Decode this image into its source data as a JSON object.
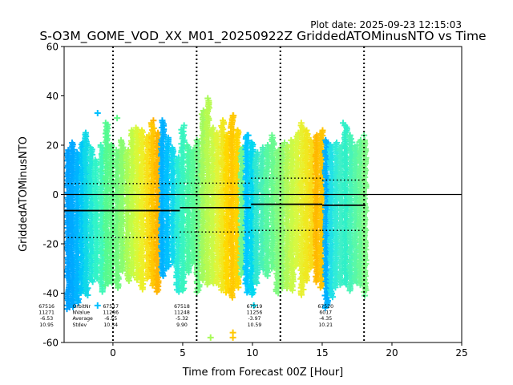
{
  "chart_data": {
    "type": "scatter",
    "plot_date": "Plot date: 2025-09-23 12:15:03",
    "title": "S-O3M_GOME_VOD_XX_M01_20250922Z GriddedATOMinusNTO vs Time",
    "xlabel": "Time from Forecast 00Z [Hour]",
    "ylabel": "GriddedATOMinusNTO",
    "xlim": [
      -3.5,
      25
    ],
    "ylim": [
      -60,
      60
    ],
    "xticks": [
      0,
      5,
      10,
      15,
      20,
      25
    ],
    "yticks": [
      -60,
      -40,
      -20,
      0,
      20,
      40,
      60
    ],
    "forecast_lines_x": [
      0,
      6,
      12,
      18
    ],
    "zero_line_y": 0,
    "columns": [
      {
        "x": -3.2,
        "lo": -47,
        "hi": 18,
        "color": "#00a0ff"
      },
      {
        "x": -2.9,
        "lo": -46,
        "hi": 21,
        "color": "#00a8ff"
      },
      {
        "x": -2.55,
        "lo": -44,
        "hi": 17,
        "color": "#00b4ff"
      },
      {
        "x": -2.2,
        "lo": -40,
        "hi": 21,
        "color": "#00c8f8"
      },
      {
        "x": -1.9,
        "lo": -41,
        "hi": 25,
        "color": "#10d8e8"
      },
      {
        "x": -1.55,
        "lo": -36,
        "hi": 19,
        "color": "#20e8d8"
      },
      {
        "x": -1.2,
        "lo": -34,
        "hi": 14,
        "color": "#30f4c8"
      },
      {
        "x": -0.8,
        "lo": -40,
        "hi": 20,
        "color": "#40f8b8"
      },
      {
        "x": -0.45,
        "lo": -37,
        "hi": 29,
        "color": "#55fa90"
      },
      {
        "x": -0.1,
        "lo": -36,
        "hi": 20,
        "color": "#60fa88"
      },
      {
        "x": 0.3,
        "lo": -38,
        "hi": 18,
        "color": "#70fa80"
      },
      {
        "x": 0.65,
        "lo": -31,
        "hi": 22,
        "color": "#88fc70"
      },
      {
        "x": 1.05,
        "lo": -35,
        "hi": 18,
        "color": "#a8fc58"
      },
      {
        "x": 1.4,
        "lo": -33,
        "hi": 26,
        "color": "#c0fc48"
      },
      {
        "x": 1.75,
        "lo": -35,
        "hi": 27,
        "color": "#d8f838"
      },
      {
        "x": 2.1,
        "lo": -39,
        "hi": 26,
        "color": "#ecf028"
      },
      {
        "x": 2.5,
        "lo": -34,
        "hi": 24,
        "color": "#f8e018"
      },
      {
        "x": 2.85,
        "lo": -37,
        "hi": 29,
        "color": "#ffc800"
      },
      {
        "x": 3.2,
        "lo": -40,
        "hi": 25,
        "color": "#ffb400"
      },
      {
        "x": 3.55,
        "lo": -33,
        "hi": 30,
        "color": "#00b0ff"
      },
      {
        "x": 3.9,
        "lo": -30,
        "hi": 23,
        "color": "#00c0ff"
      },
      {
        "x": 4.3,
        "lo": -28,
        "hi": 19,
        "color": "#10d8f0"
      },
      {
        "x": 4.65,
        "lo": -40,
        "hi": 15,
        "color": "#28ecd8"
      },
      {
        "x": 5.0,
        "lo": -39,
        "hi": 27,
        "color": "#38f4c0"
      },
      {
        "x": 5.4,
        "lo": -32,
        "hi": 20,
        "color": "#48f8a8"
      },
      {
        "x": 5.75,
        "lo": -28,
        "hi": 18,
        "color": "#58fa98"
      },
      {
        "x": 6.1,
        "lo": -40,
        "hi": 22,
        "color": "#70fa88"
      },
      {
        "x": 6.45,
        "lo": -35,
        "hi": 34,
        "color": "#a0fa60"
      },
      {
        "x": 6.8,
        "lo": -37,
        "hi": 38,
        "color": "#b8fa50"
      },
      {
        "x": 7.15,
        "lo": -36,
        "hi": 27,
        "color": "#c8fa48"
      },
      {
        "x": 7.5,
        "lo": -37,
        "hi": 25,
        "color": "#e0f438"
      },
      {
        "x": 7.85,
        "lo": -39,
        "hi": 30,
        "color": "#f0e820"
      },
      {
        "x": 8.2,
        "lo": -40,
        "hi": 24,
        "color": "#ffd800"
      },
      {
        "x": 8.55,
        "lo": -42,
        "hi": 32,
        "color": "#ffc800"
      },
      {
        "x": 8.9,
        "lo": -38,
        "hi": 26,
        "color": "#ffd400"
      },
      {
        "x": 9.25,
        "lo": -33,
        "hi": 19,
        "color": "#70f890"
      },
      {
        "x": 9.6,
        "lo": -40,
        "hi": 24,
        "color": "#00c8ff"
      },
      {
        "x": 9.95,
        "lo": -41,
        "hi": 21,
        "color": "#00d8f0"
      },
      {
        "x": 10.3,
        "lo": -36,
        "hi": 17,
        "color": "#30e8d0"
      },
      {
        "x": 10.7,
        "lo": -31,
        "hi": 19,
        "color": "#48f0b8"
      },
      {
        "x": 11.05,
        "lo": -33,
        "hi": 20,
        "color": "#58f8a0"
      },
      {
        "x": 11.45,
        "lo": -30,
        "hi": 23,
        "color": "#68fa90"
      },
      {
        "x": 11.8,
        "lo": -40,
        "hi": 18,
        "color": "#80fa80"
      },
      {
        "x": 12.15,
        "lo": -38,
        "hi": 20,
        "color": "#90fa70"
      },
      {
        "x": 12.5,
        "lo": -38,
        "hi": 20,
        "color": "#b0fa58"
      },
      {
        "x": 12.85,
        "lo": -39,
        "hi": 22,
        "color": "#c8fa48"
      },
      {
        "x": 13.2,
        "lo": -29,
        "hi": 25,
        "color": "#d8f840"
      },
      {
        "x": 13.55,
        "lo": -41,
        "hi": 28,
        "color": "#e8f030"
      },
      {
        "x": 13.9,
        "lo": -35,
        "hi": 26,
        "color": "#f0e820"
      },
      {
        "x": 14.25,
        "lo": -30,
        "hi": 22,
        "color": "#f8dc18"
      },
      {
        "x": 14.6,
        "lo": -36,
        "hi": 24,
        "color": "#ffb800"
      },
      {
        "x": 14.95,
        "lo": -38,
        "hi": 26,
        "color": "#ffc400"
      },
      {
        "x": 15.3,
        "lo": -46,
        "hi": 22,
        "color": "#00b0ff"
      },
      {
        "x": 15.65,
        "lo": -42,
        "hi": 20,
        "color": "#20e0e8"
      },
      {
        "x": 16.0,
        "lo": -38,
        "hi": 21,
        "color": "#30ecd8"
      },
      {
        "x": 16.35,
        "lo": -37,
        "hi": 20,
        "color": "#40f0c8"
      },
      {
        "x": 16.7,
        "lo": -37,
        "hi": 28,
        "color": "#30f0c8"
      },
      {
        "x": 17.05,
        "lo": -39,
        "hi": 24,
        "color": "#48f4b8"
      },
      {
        "x": 17.4,
        "lo": -36,
        "hi": 20,
        "color": "#58f8a8"
      },
      {
        "x": 17.75,
        "lo": -37,
        "hi": 22,
        "color": "#68fa98"
      },
      {
        "x": 18.05,
        "lo": -40,
        "hi": 22,
        "color": "#80fa88"
      }
    ],
    "outliers": [
      {
        "x": -1.1,
        "y": 33,
        "color": "#00c0ff"
      },
      {
        "x": -1.1,
        "y": -45,
        "color": "#00c0ff"
      },
      {
        "x": 0.3,
        "y": 31,
        "color": "#60fa88"
      },
      {
        "x": 2.9,
        "y": 30,
        "color": "#ffb000"
      },
      {
        "x": 3.6,
        "y": -30,
        "color": "#00b0ff"
      },
      {
        "x": 5.1,
        "y": 28,
        "color": "#38f4c0"
      },
      {
        "x": 6.8,
        "y": 39,
        "color": "#a8fa58"
      },
      {
        "x": 7.0,
        "y": -58,
        "color": "#a8fa58"
      },
      {
        "x": 8.6,
        "y": 32,
        "color": "#ffc800"
      },
      {
        "x": 8.6,
        "y": -56,
        "color": "#ffc800"
      },
      {
        "x": 8.6,
        "y": -58,
        "color": "#ffc800"
      },
      {
        "x": 9.7,
        "y": 24,
        "color": "#00c8ff"
      },
      {
        "x": 10.1,
        "y": -45,
        "color": "#00d8f0"
      },
      {
        "x": 11.4,
        "y": 24,
        "color": "#68fa90"
      },
      {
        "x": 12.3,
        "y": 21,
        "color": "#90fa70"
      },
      {
        "x": 13.5,
        "y": 29,
        "color": "#e8f030"
      },
      {
        "x": 13.1,
        "y": -29,
        "color": "#d8f840"
      },
      {
        "x": 15.3,
        "y": -45,
        "color": "#00b0ff"
      },
      {
        "x": 16.5,
        "y": 29,
        "color": "#30f0c8"
      },
      {
        "x": 17.0,
        "y": 24,
        "color": "#48f4b8"
      },
      {
        "x": 18.0,
        "y": 24,
        "color": "#68fa98"
      },
      {
        "x": 18.05,
        "y": -41,
        "color": "#68fa98"
      }
    ],
    "average_segments": [
      {
        "x0": -3.5,
        "x1": 4.8,
        "y": -6.53
      },
      {
        "x0": 4.8,
        "x1": 9.9,
        "y": -5.32
      },
      {
        "x0": 9.9,
        "x1": 15.0,
        "y": -3.97
      },
      {
        "x0": 15.0,
        "x1": 18.1,
        "y": -4.35
      }
    ],
    "stdev_bands": [
      {
        "x0": -3.5,
        "x1": 4.8,
        "upper": 4.42,
        "lower": -17.48
      },
      {
        "x0": 4.8,
        "x1": 9.9,
        "upper": 4.58,
        "lower": -15.22
      },
      {
        "x0": 9.9,
        "x1": 15.0,
        "upper": 6.62,
        "lower": -14.56
      },
      {
        "x0": 15.0,
        "x1": 18.1,
        "upper": 5.86,
        "lower": -14.56
      }
    ],
    "stat_legend": {
      "labels": [
        "OrbitNr",
        "NValue",
        "Average",
        "Stdev"
      ],
      "label_anchor_x": -2.9,
      "anchor_y": -46
    },
    "stat_blocks": [
      {
        "x": -5.1,
        "values": [
          "67516",
          "11271",
          "-6.53",
          "10.95"
        ]
      },
      {
        "x": -0.5,
        "values": [
          "67517",
          "11286",
          "-6.55",
          "10.34"
        ]
      },
      {
        "x": 4.6,
        "values": [
          "67518",
          "11248",
          "-5.32",
          "9.90"
        ]
      },
      {
        "x": 9.8,
        "values": [
          "67519",
          "11256",
          "-3.97",
          "10.59"
        ]
      },
      {
        "x": 14.9,
        "values": [
          "67520",
          "6017",
          "-4.35",
          "10.21"
        ]
      }
    ]
  }
}
